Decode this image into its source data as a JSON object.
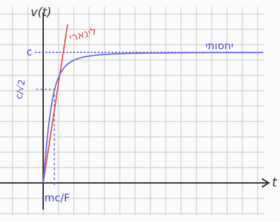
{
  "y_axis_label": "v(t)",
  "x_axis_label": "t",
  "y_marks": [
    "c",
    "c/√2"
  ],
  "x_mark": "mc/F",
  "curve_labels": {
    "linear": "לינארי",
    "relativistic": "יחסותי"
  }
}
